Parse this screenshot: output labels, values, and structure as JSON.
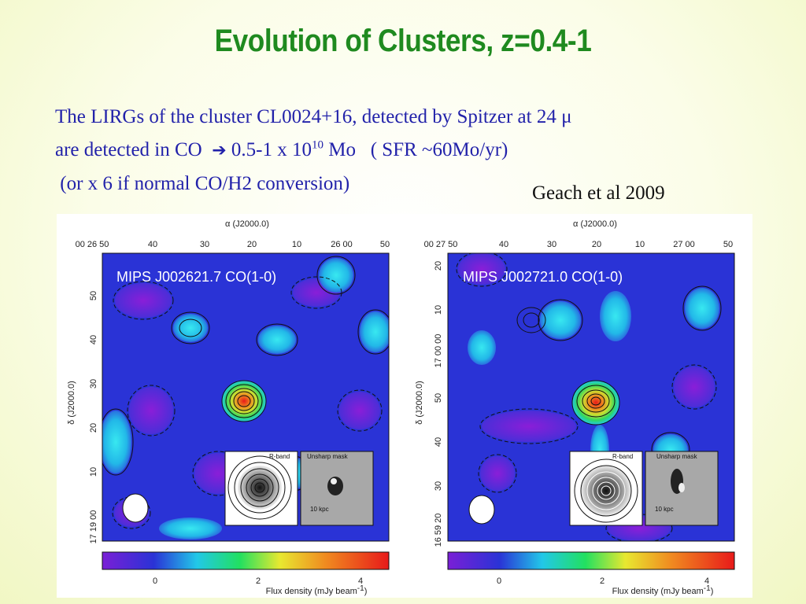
{
  "slide": {
    "title": "Evolution of Clusters, z=0.4-1",
    "text_line1": "The LIRGs of the cluster CL0024+16, detected by Spitzer at 24 μ",
    "text_line2_a": "are detected in CO",
    "text_line2_arrow": "➔",
    "text_line2_b": "0.5-1 x 10",
    "text_line2_sup": "10",
    "text_line2_c": " Mo   ( SFR ~60Mo/yr)",
    "text_line3": " (or x 6 if normal CO/H2 conversion)",
    "citation": "Geach et al 2009"
  },
  "figure": {
    "top_axis_label": "α (J2000.0)",
    "left_axis_label": "δ (J2000.0)",
    "colorbar_label": "Flux density (mJy beam",
    "colorbar_label_sup": "-1",
    "colorbar_label_end": ")",
    "colorbar_ticks": [
      "0",
      "2",
      "4"
    ],
    "inset_left_label": "R-band",
    "inset_right_label": "Unsharp mask",
    "scale_label": "10 kpc",
    "panels": [
      {
        "title": "MIPS J002621.7 CO(1-0)",
        "ra_ticks": [
          "00 26 50",
          "40",
          "30",
          "20",
          "10",
          "26 00",
          "50"
        ],
        "dec_ticks": [
          "17 19 00",
          "10",
          "20",
          "30",
          "40",
          "50"
        ]
      },
      {
        "title": "MIPS J002721.0 CO(1-0)",
        "ra_ticks": [
          "00 27 50",
          "40",
          "30",
          "20",
          "10",
          "27 00",
          "50"
        ],
        "dec_ticks": [
          "16 59 20",
          "30",
          "40",
          "50",
          "17 00 00",
          "10",
          "20"
        ]
      }
    ]
  },
  "colors": {
    "title": "#1f8a1f",
    "text": "#2222aa",
    "map_background": "#2a33d6"
  }
}
